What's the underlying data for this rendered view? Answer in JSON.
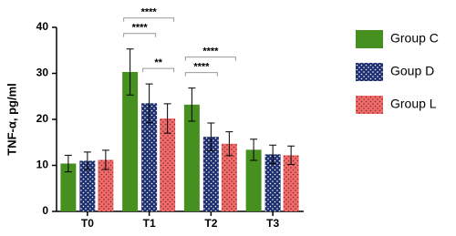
{
  "chart_data": {
    "type": "bar",
    "ylabel": "TNF-α, pg/ml",
    "categories": [
      "T0",
      "T1",
      "T2",
      "T3"
    ],
    "series": [
      {
        "name": "Group C",
        "color": "#46901f",
        "values": [
          10.4,
          30.3,
          23.2,
          13.4
        ],
        "errors": [
          1.8,
          5.0,
          3.6,
          2.3
        ]
      },
      {
        "name": "Goup D",
        "color": "#1d2f70",
        "values": [
          11.0,
          23.5,
          16.2,
          12.4
        ],
        "errors": [
          1.9,
          4.2,
          3.0,
          2.0
        ]
      },
      {
        "name": "Group L",
        "color": "#f26b6b",
        "values": [
          11.2,
          20.2,
          14.7,
          12.2
        ],
        "errors": [
          2.1,
          3.2,
          2.6,
          2.0
        ]
      }
    ],
    "ylim": [
      0,
      40
    ],
    "yticks": [
      0,
      10,
      20,
      30,
      40
    ],
    "significance": [
      {
        "label": "****",
        "category": 1,
        "pair": [
          0,
          1
        ]
      },
      {
        "label": "****",
        "category": 1,
        "pair": [
          0,
          2
        ]
      },
      {
        "label": "**",
        "category": 1,
        "pair": [
          1,
          2
        ]
      },
      {
        "label": "****",
        "category": 2,
        "pair": [
          0,
          1
        ]
      },
      {
        "label": "****",
        "category": 2,
        "pair": [
          0,
          2
        ]
      }
    ],
    "legend": "right"
  }
}
